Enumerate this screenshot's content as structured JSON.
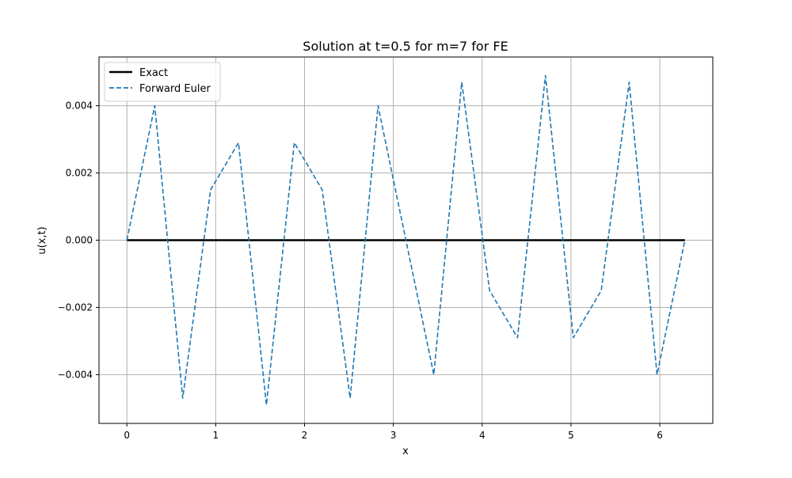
{
  "chart_data": {
    "type": "line",
    "title": "Solution at t=0.5 for m=7 for FE",
    "xlabel": "x",
    "ylabel": "u(x,t)",
    "xlim": [
      -0.314,
      6.597
    ],
    "ylim": [
      -0.00545,
      0.00545
    ],
    "xticks": [
      0,
      1,
      2,
      3,
      4,
      5,
      6
    ],
    "xtick_labels": [
      "0",
      "1",
      "2",
      "3",
      "4",
      "5",
      "6"
    ],
    "yticks": [
      -0.004,
      -0.002,
      0.0,
      0.002,
      0.004
    ],
    "ytick_labels": [
      "−0.004",
      "−0.002",
      "0.000",
      "0.002",
      "0.004"
    ],
    "grid": true,
    "legend_position": "upper-left",
    "series": [
      {
        "name": "Exact",
        "color": "#000000",
        "style": "solid",
        "x": [
          0,
          6.2832
        ],
        "y": [
          0,
          0
        ]
      },
      {
        "name": "Forward Euler",
        "color": "#1f77b4",
        "style": "dashed",
        "x": [
          0,
          0.3142,
          0.6283,
          0.9425,
          1.2566,
          1.5708,
          1.885,
          2.1991,
          2.5133,
          2.8274,
          3.1416,
          3.4558,
          3.7699,
          4.0841,
          4.3982,
          4.7124,
          5.0265,
          5.3407,
          5.6549,
          5.969,
          6.2832
        ],
        "y": [
          0.0,
          0.004,
          -0.0047,
          0.0015,
          0.0029,
          -0.0049,
          0.0029,
          0.0015,
          -0.0047,
          0.004,
          0.0,
          -0.004,
          0.0047,
          -0.0015,
          -0.0029,
          0.0049,
          -0.0029,
          -0.0015,
          0.0047,
          -0.004,
          0.0
        ]
      }
    ]
  }
}
